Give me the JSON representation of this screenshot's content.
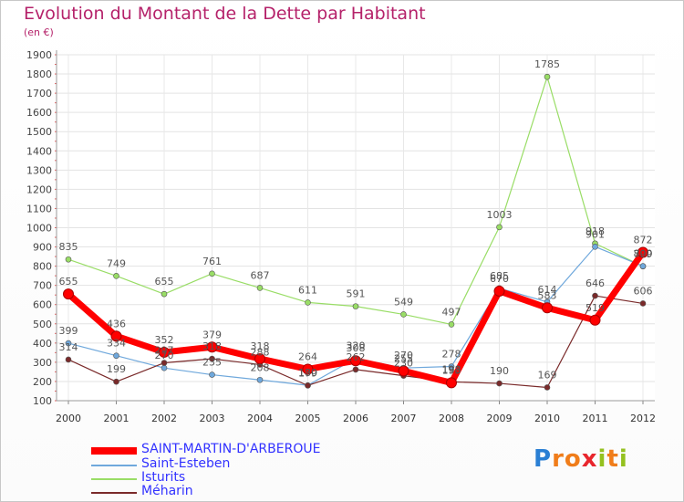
{
  "header": {
    "title": "Evolution du Montant de la Dette par Habitant",
    "unit": "(en €)"
  },
  "chart_data": {
    "type": "line",
    "title": "Evolution du Montant de la Dette par Habitant",
    "subtitle": "(en €)",
    "xlabel": "",
    "ylabel": "",
    "x": [
      "2000",
      "2001",
      "2002",
      "2003",
      "2004",
      "2005",
      "2006",
      "2007",
      "2008",
      "2009",
      "2010",
      "2011",
      "2012"
    ],
    "ylim": [
      100,
      1900
    ],
    "yticks": [
      100,
      200,
      300,
      400,
      500,
      600,
      700,
      800,
      900,
      1000,
      1100,
      1200,
      1300,
      1400,
      1500,
      1600,
      1700,
      1800,
      1900
    ],
    "grid": true,
    "legend": "bottom-left",
    "series": [
      {
        "name": "SAINT-MARTIN-D'ARBEROUE",
        "color": "#ff0000",
        "values": [
          655,
          436,
          352,
          379,
          318,
          264,
          308,
          255,
          193,
          670,
          583,
          519,
          872
        ]
      },
      {
        "name": "Saint-Esteben",
        "color": "#6fa8dc",
        "values": [
          399,
          334,
          270,
          235,
          208,
          180,
          320,
          270,
          278,
          685,
          614,
          901,
          800
        ]
      },
      {
        "name": "Isturits",
        "color": "#99dd66",
        "values": [
          835,
          749,
          655,
          761,
          687,
          611,
          591,
          549,
          497,
          1003,
          1785,
          918,
          799
        ]
      },
      {
        "name": "Méharin",
        "color": "#7a2a2a",
        "values": [
          314,
          199,
          297,
          318,
          288,
          179,
          262,
          230,
          198,
          190,
          169,
          646,
          606
        ]
      }
    ]
  },
  "legend": {
    "items": [
      {
        "label": "SAINT-MARTIN-D'ARBEROUE",
        "color": "#ff0000"
      },
      {
        "label": "Saint-Esteben",
        "color": "#6fa8dc"
      },
      {
        "label": "Isturits",
        "color": "#99dd66"
      },
      {
        "label": "Méharin",
        "color": "#7a2a2a"
      }
    ]
  },
  "logo": {
    "letters": [
      "P",
      "r",
      "o",
      "x",
      "i",
      "t",
      "i"
    ],
    "colors": [
      "#2a7fd4",
      "#f07d1a",
      "#f07d1a",
      "#e8262d",
      "#94c11f",
      "#f07d1a",
      "#94c11f"
    ]
  }
}
